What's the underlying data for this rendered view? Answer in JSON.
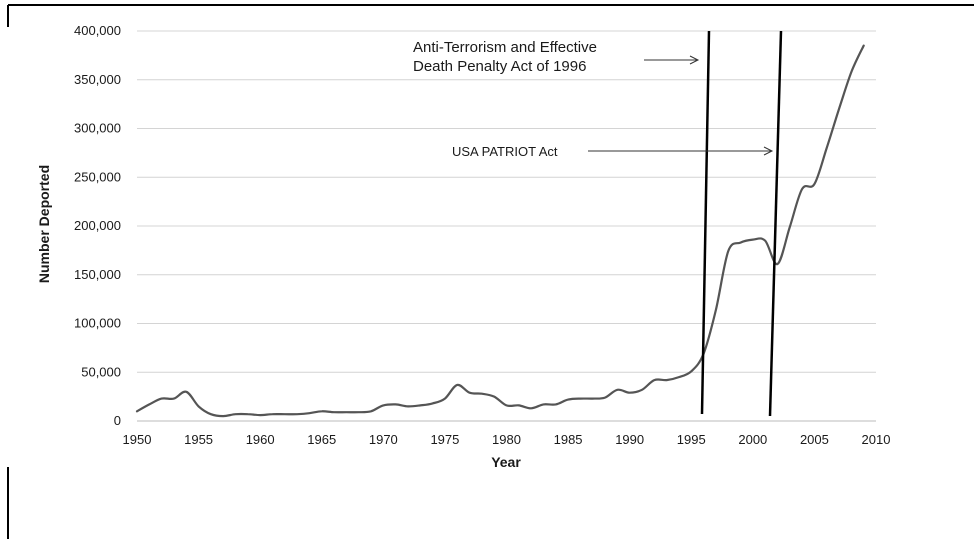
{
  "chart_data": {
    "type": "line",
    "xlabel": "Year",
    "ylabel": "Number Deported",
    "xlim": [
      1950,
      2010
    ],
    "ylim": [
      0,
      400000
    ],
    "x_ticks": [
      "1950",
      "1955",
      "1960",
      "1965",
      "1970",
      "1975",
      "1980",
      "1985",
      "1990",
      "1995",
      "2000",
      "2005",
      "2010"
    ],
    "y_ticks": [
      "0",
      "50,000",
      "100,000",
      "150,000",
      "200,000",
      "250,000",
      "300,000",
      "350,000",
      "400,000"
    ],
    "grid": "horizontal",
    "line_color": "#555555",
    "series": [
      {
        "x": [
          1950,
          1951,
          1952,
          1953,
          1954,
          1955,
          1956,
          1957,
          1958,
          1959,
          1960,
          1961,
          1962,
          1963,
          1964,
          1965,
          1966,
          1967,
          1968,
          1969,
          1970,
          1971,
          1972,
          1973,
          1974,
          1975,
          1976,
          1977,
          1978,
          1979,
          1980,
          1981,
          1982,
          1983,
          1984,
          1985,
          1986,
          1987,
          1988,
          1989,
          1990,
          1991,
          1992,
          1993,
          1994,
          1995,
          1996,
          1997,
          1998,
          1999,
          2000,
          2001,
          2002,
          2003,
          2004,
          2005,
          2006,
          2007,
          2008,
          2009
        ],
        "y": [
          10000,
          17000,
          23000,
          23000,
          30000,
          15000,
          7000,
          5000,
          7000,
          7000,
          6000,
          7000,
          7000,
          7000,
          8000,
          10000,
          9000,
          9000,
          9000,
          10000,
          16000,
          17000,
          15000,
          16000,
          18000,
          23000,
          37000,
          29000,
          28000,
          25000,
          16000,
          16000,
          13000,
          17000,
          17000,
          22000,
          23000,
          23000,
          24000,
          32000,
          29000,
          32000,
          42000,
          42000,
          45000,
          51000,
          69000,
          114000,
          174000,
          183000,
          186000,
          185000,
          161000,
          199000,
          238000,
          243000,
          280000,
          320000,
          358000,
          385000
        ]
      }
    ],
    "markers": [
      {
        "year": 1996,
        "label_lines": [
          "Anti-Terrorism and Effective",
          "Death Penalty  Act of 1996"
        ]
      },
      {
        "year": 2001.5,
        "label_lines": [
          "USA PATRIOT Act"
        ]
      }
    ]
  }
}
